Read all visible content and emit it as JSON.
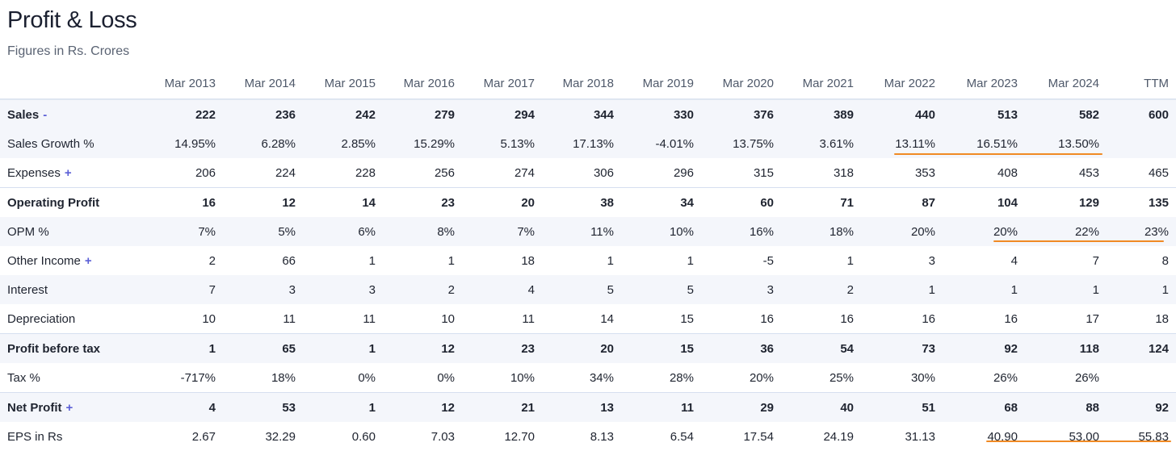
{
  "header": {
    "title": "Profit & Loss",
    "subtitle": "Figures in Rs. Crores"
  },
  "table": {
    "columns": [
      "",
      "Mar 2013",
      "Mar 2014",
      "Mar 2015",
      "Mar 2016",
      "Mar 2017",
      "Mar 2018",
      "Mar 2019",
      "Mar 2020",
      "Mar 2021",
      "Mar 2022",
      "Mar 2023",
      "Mar 2024",
      "TTM"
    ],
    "rows": [
      {
        "label": "Sales",
        "toggle": "-",
        "bold": true,
        "shade": true,
        "divider": false,
        "cells": [
          "222",
          "236",
          "242",
          "279",
          "294",
          "344",
          "330",
          "376",
          "389",
          "440",
          "513",
          "582",
          "600"
        ]
      },
      {
        "label": "Sales Growth %",
        "toggle": "",
        "bold": false,
        "shade": true,
        "divider": false,
        "cells": [
          "14.95%",
          "6.28%",
          "2.85%",
          "15.29%",
          "5.13%",
          "17.13%",
          "-4.01%",
          "13.75%",
          "3.61%",
          "13.11%",
          "16.51%",
          "13.50%",
          ""
        ]
      },
      {
        "label": "Expenses",
        "toggle": "+",
        "bold": false,
        "shade": false,
        "divider": false,
        "cells": [
          "206",
          "224",
          "228",
          "256",
          "274",
          "306",
          "296",
          "315",
          "318",
          "353",
          "408",
          "453",
          "465"
        ]
      },
      {
        "label": "Operating Profit",
        "toggle": "",
        "bold": true,
        "shade": false,
        "divider": true,
        "cells": [
          "16",
          "12",
          "14",
          "23",
          "20",
          "38",
          "34",
          "60",
          "71",
          "87",
          "104",
          "129",
          "135"
        ]
      },
      {
        "label": "OPM %",
        "toggle": "",
        "bold": false,
        "shade": true,
        "divider": false,
        "cells": [
          "7%",
          "5%",
          "6%",
          "8%",
          "7%",
          "11%",
          "10%",
          "16%",
          "18%",
          "20%",
          "20%",
          "22%",
          "23%"
        ]
      },
      {
        "label": "Other Income",
        "toggle": "+",
        "bold": false,
        "shade": false,
        "divider": false,
        "cells": [
          "2",
          "66",
          "1",
          "1",
          "18",
          "1",
          "1",
          "-5",
          "1",
          "3",
          "4",
          "7",
          "8"
        ]
      },
      {
        "label": "Interest",
        "toggle": "",
        "bold": false,
        "shade": true,
        "divider": false,
        "cells": [
          "7",
          "3",
          "3",
          "2",
          "4",
          "5",
          "5",
          "3",
          "2",
          "1",
          "1",
          "1",
          "1"
        ]
      },
      {
        "label": "Depreciation",
        "toggle": "",
        "bold": false,
        "shade": false,
        "divider": false,
        "cells": [
          "10",
          "11",
          "11",
          "10",
          "11",
          "14",
          "15",
          "16",
          "16",
          "16",
          "16",
          "17",
          "18"
        ]
      },
      {
        "label": "Profit before tax",
        "toggle": "",
        "bold": true,
        "shade": true,
        "divider": true,
        "cells": [
          "1",
          "65",
          "1",
          "12",
          "23",
          "20",
          "15",
          "36",
          "54",
          "73",
          "92",
          "118",
          "124"
        ]
      },
      {
        "label": "Tax %",
        "toggle": "",
        "bold": false,
        "shade": false,
        "divider": false,
        "cells": [
          "-717%",
          "18%",
          "0%",
          "0%",
          "10%",
          "34%",
          "28%",
          "20%",
          "25%",
          "30%",
          "26%",
          "26%",
          ""
        ]
      },
      {
        "label": "Net Profit",
        "toggle": "+",
        "bold": true,
        "shade": true,
        "divider": true,
        "cells": [
          "4",
          "53",
          "1",
          "12",
          "21",
          "13",
          "11",
          "29",
          "40",
          "51",
          "68",
          "88",
          "92"
        ]
      },
      {
        "label": "EPS in Rs",
        "toggle": "",
        "bold": false,
        "shade": false,
        "divider": false,
        "cells": [
          "2.67",
          "32.29",
          "0.60",
          "7.03",
          "12.70",
          "8.13",
          "6.54",
          "17.54",
          "24.19",
          "31.13",
          "40.90",
          "53.00",
          "55.83"
        ]
      }
    ]
  },
  "annotations": {
    "underline_color": "#f08a24"
  }
}
